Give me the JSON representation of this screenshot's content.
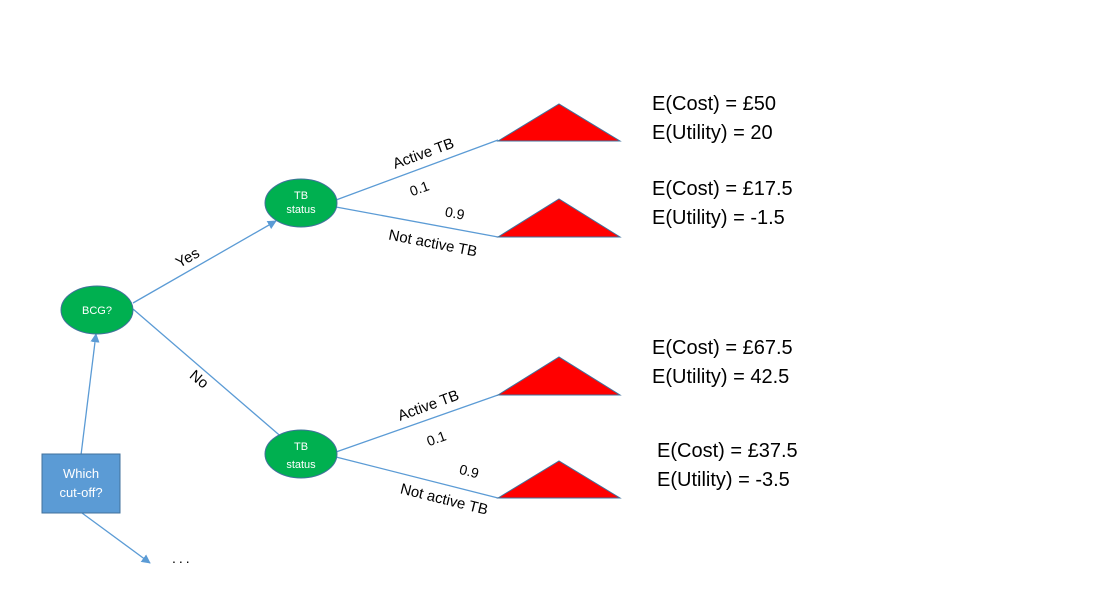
{
  "colors": {
    "chance_node": "#00B050",
    "decision_box": "#5B9BD5",
    "edge": "#5B9BD5",
    "terminal": "#FF0000",
    "text": "#000000"
  },
  "decision_box": {
    "label_line1": "Which",
    "label_line2": "cut-off?"
  },
  "continuation": {
    "label": "..."
  },
  "bcg_node": {
    "label": "BCG?"
  },
  "branches": {
    "yes": {
      "label": "Yes"
    },
    "no": {
      "label": "No"
    }
  },
  "tb_nodes": [
    {
      "label_line1": "TB",
      "label_line2": "status"
    },
    {
      "label_line1": "TB",
      "label_line2": "status"
    }
  ],
  "outcome_edges": [
    {
      "label": "Active TB",
      "probability": "0.1"
    },
    {
      "label": "Not active TB",
      "probability": "0.9"
    },
    {
      "label": "Active TB",
      "probability": "0.1"
    },
    {
      "label": "Not active TB",
      "probability": "0.9"
    }
  ],
  "outcomes": [
    {
      "cost": "E(Cost) = £50",
      "utility": "E(Utility) = 20"
    },
    {
      "cost": "E(Cost) = £17.5",
      "utility": "E(Utility) = -1.5"
    },
    {
      "cost": "E(Cost) = £67.5",
      "utility": "E(Utility) = 42.5"
    },
    {
      "cost": "E(Cost) = £37.5",
      "utility": "E(Utility) = -3.5"
    }
  ]
}
